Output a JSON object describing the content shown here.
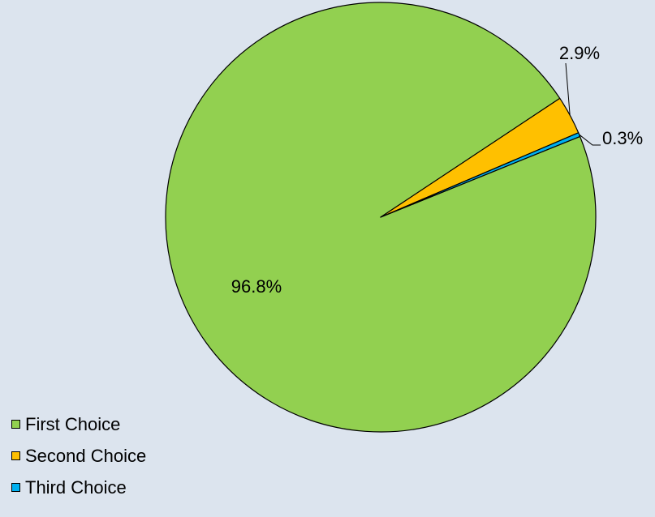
{
  "chart_data": {
    "type": "pie",
    "slices": [
      {
        "name": "First Choice",
        "value": 96.8,
        "label": "96.8%",
        "color": "#92d050"
      },
      {
        "name": "Second Choice",
        "value": 2.9,
        "label": "2.9%",
        "color": "#ffc000"
      },
      {
        "name": "Third Choice",
        "value": 0.3,
        "label": "0.3%",
        "color": "#00b0f0"
      }
    ],
    "legend_position": "bottom-left",
    "title": ""
  },
  "legend": {
    "items": [
      {
        "label": "First Choice",
        "color": "#92d050"
      },
      {
        "label": "Second Choice",
        "color": "#ffc000"
      },
      {
        "label": "Third Choice",
        "color": "#00b0f0"
      }
    ]
  }
}
